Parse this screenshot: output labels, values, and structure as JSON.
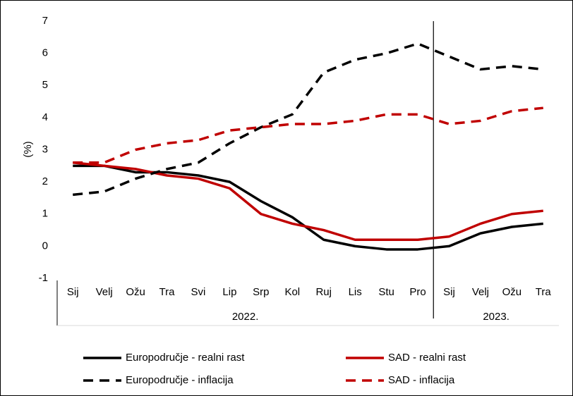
{
  "chart_data": {
    "type": "line",
    "y_label": "(%)",
    "categories": [
      "Sij",
      "Velj",
      "Ožu",
      "Tra",
      "Svi",
      "Lip",
      "Srp",
      "Kol",
      "Ruj",
      "Lis",
      "Stu",
      "Pro",
      "Sij",
      "Velj",
      "Ožu",
      "Tra"
    ],
    "x_groups": [
      {
        "label": "2022.",
        "count": 12
      },
      {
        "label": "2023.",
        "count": 4
      }
    ],
    "ylim": [
      -1,
      7
    ],
    "yticks": [
      -1,
      0,
      1,
      2,
      3,
      4,
      5,
      6,
      7
    ],
    "series": [
      {
        "name": "Europodručje - realni rast",
        "color": "#000000",
        "style": "solid",
        "values": [
          2.5,
          2.5,
          2.3,
          2.3,
          2.2,
          2.0,
          1.4,
          0.9,
          0.2,
          0.0,
          -0.1,
          -0.1,
          0.0,
          0.4,
          0.6,
          0.7
        ]
      },
      {
        "name": "SAD - realni rast",
        "color": "#c00000",
        "style": "solid",
        "values": [
          2.6,
          2.5,
          2.4,
          2.2,
          2.1,
          1.8,
          1.0,
          0.7,
          0.5,
          0.2,
          0.2,
          0.2,
          0.3,
          0.7,
          1.0,
          1.1
        ]
      },
      {
        "name": "Europodručje - inflacija",
        "color": "#000000",
        "style": "dashed",
        "values": [
          1.6,
          1.7,
          2.1,
          2.4,
          2.6,
          3.2,
          3.7,
          4.1,
          5.4,
          5.8,
          6.0,
          6.3,
          5.9,
          5.5,
          5.6,
          5.5
        ]
      },
      {
        "name": "SAD - inflacija",
        "color": "#c00000",
        "style": "dashed",
        "values": [
          2.6,
          2.6,
          3.0,
          3.2,
          3.3,
          3.6,
          3.7,
          3.8,
          3.8,
          3.9,
          4.1,
          4.1,
          3.8,
          3.9,
          4.2,
          4.3
        ]
      }
    ]
  }
}
